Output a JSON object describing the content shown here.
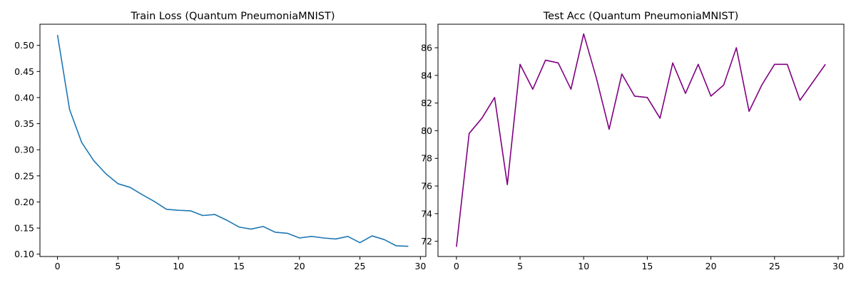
{
  "chart_data": [
    {
      "type": "line",
      "title": "Train Loss (Quantum PneumoniaMNIST)",
      "xlabel": "",
      "ylabel": "",
      "xlim": [
        -1.45,
        30.45
      ],
      "ylim": [
        0.0955,
        0.5405
      ],
      "xticks": [
        0,
        5,
        10,
        15,
        20,
        25,
        30
      ],
      "yticks": [
        0.1,
        0.15,
        0.2,
        0.25,
        0.3,
        0.35,
        0.4,
        0.45,
        0.5
      ],
      "xtick_labels": [
        "0",
        "5",
        "10",
        "15",
        "20",
        "25",
        "30"
      ],
      "ytick_labels": [
        "0.10",
        "0.15",
        "0.20",
        "0.25",
        "0.30",
        "0.35",
        "0.40",
        "0.45",
        "0.50"
      ],
      "grid": false,
      "color": "#1f77b4",
      "series": [
        {
          "x": [
            0,
            1,
            2,
            3,
            4,
            5,
            6,
            7,
            8,
            9,
            10,
            11,
            12,
            13,
            14,
            15,
            16,
            17,
            18,
            19,
            20,
            21,
            22,
            23,
            24,
            25,
            26,
            27,
            28,
            29
          ],
          "y": [
            0.52,
            0.377,
            0.314,
            0.279,
            0.254,
            0.235,
            0.228,
            0.214,
            0.201,
            0.186,
            0.184,
            0.183,
            0.174,
            0.176,
            0.165,
            0.152,
            0.148,
            0.153,
            0.142,
            0.14,
            0.131,
            0.134,
            0.131,
            0.129,
            0.134,
            0.122,
            0.135,
            0.128,
            0.116,
            0.115
          ]
        }
      ]
    },
    {
      "type": "line",
      "title": "Test Acc (Quantum PneumoniaMNIST)",
      "xlabel": "",
      "ylabel": "",
      "xlim": [
        -1.45,
        30.45
      ],
      "ylim": [
        70.9,
        87.7
      ],
      "xticks": [
        0,
        5,
        10,
        15,
        20,
        25,
        30
      ],
      "yticks": [
        72,
        74,
        76,
        78,
        80,
        82,
        84,
        86
      ],
      "xtick_labels": [
        "0",
        "5",
        "10",
        "15",
        "20",
        "25",
        "30"
      ],
      "ytick_labels": [
        "72",
        "74",
        "76",
        "78",
        "80",
        "82",
        "84",
        "86"
      ],
      "grid": false,
      "color": "#800080",
      "series": [
        {
          "x": [
            0,
            1,
            2,
            3,
            4,
            5,
            6,
            7,
            8,
            9,
            10,
            11,
            12,
            13,
            14,
            15,
            16,
            17,
            18,
            19,
            20,
            21,
            22,
            23,
            24,
            25,
            26,
            27,
            28,
            29
          ],
          "y": [
            71.6,
            79.8,
            80.9,
            82.4,
            76.1,
            84.8,
            83.0,
            85.1,
            84.9,
            83.0,
            87.0,
            83.8,
            80.1,
            84.1,
            82.5,
            82.4,
            80.9,
            84.9,
            82.7,
            84.8,
            82.5,
            83.3,
            86.0,
            81.4,
            83.3,
            84.8,
            84.8,
            82.2,
            83.5,
            84.8
          ]
        }
      ]
    }
  ]
}
